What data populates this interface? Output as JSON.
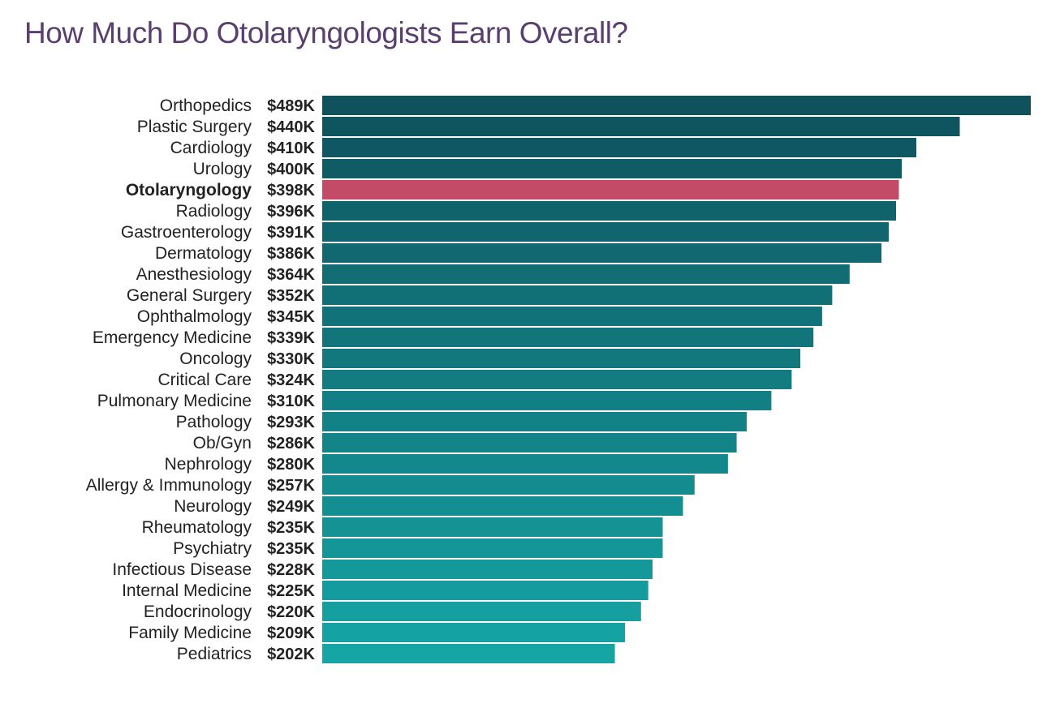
{
  "title": "How Much Do Otolaryngologists Earn Overall?",
  "colors": {
    "title": "#5a3f6e",
    "highlight": "#c44b68",
    "bar_dark": "#0f525d",
    "bar_light": "#15a5a5",
    "label_text": "#222222"
  },
  "chart_data": {
    "type": "bar",
    "orientation": "horizontal",
    "title": "How Much Do Otolaryngologists Earn Overall?",
    "xlabel": "",
    "ylabel": "",
    "unit": "$K",
    "xlim": [
      0,
      489
    ],
    "grid": false,
    "highlight": "Otolaryngology",
    "categories": [
      "Orthopedics",
      "Plastic Surgery",
      "Cardiology",
      "Urology",
      "Otolaryngology",
      "Radiology",
      "Gastroenterology",
      "Dermatology",
      "Anesthesiology",
      "General Surgery",
      "Ophthalmology",
      "Emergency Medicine",
      "Oncology",
      "Critical Care",
      "Pulmonary Medicine",
      "Pathology",
      "Ob/Gyn",
      "Nephrology",
      "Allergy & Immunology",
      "Neurology",
      "Rheumatology",
      "Psychiatry",
      "Infectious Disease",
      "Internal Medicine",
      "Endocrinology",
      "Family Medicine",
      "Pediatrics"
    ],
    "values": [
      489,
      440,
      410,
      400,
      398,
      396,
      391,
      386,
      364,
      352,
      345,
      339,
      330,
      324,
      310,
      293,
      286,
      280,
      257,
      249,
      235,
      235,
      228,
      225,
      220,
      209,
      202
    ],
    "value_labels": [
      "$489K",
      "$440K",
      "$410K",
      "$400K",
      "$398K",
      "$396K",
      "$391K",
      "$386K",
      "$364K",
      "$352K",
      "$345K",
      "$339K",
      "$330K",
      "$324K",
      "$310K",
      "$293K",
      "$286K",
      "$280K",
      "$257K",
      "$249K",
      "$235K",
      "$235K",
      "$228K",
      "$225K",
      "$220K",
      "$209K",
      "$202K"
    ]
  }
}
